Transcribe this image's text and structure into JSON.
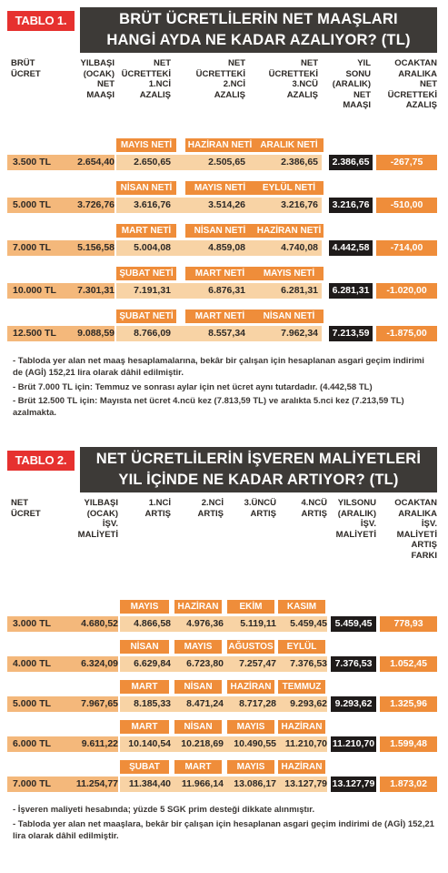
{
  "table1": {
    "badge": "TABLO 1.",
    "title_line1": "BRÜT ÜCRETLİLERİN NET MAAŞLARI",
    "title_line2": "HANGİ AYDA NE KADAR AZALIYOR? (TL)",
    "headers": {
      "brut": "BRÜT\nÜCRET",
      "ocak": "YILBAŞI\n(OCAK)\nNET\nMAAŞI",
      "a1": "NET\nÜCRETTEKİ\n1.NCİ\nAZALIŞ",
      "a2": "NET\nÜCRETTEKİ\n2.NCİ\nAZALIŞ",
      "a3": "NET\nÜCRETTEKİ\n3.NCÜ\nAZALIŞ",
      "yilsonu": "YIL\nSONU\n(ARALIK)\nNET\nMAAŞI",
      "fark": "OCAKTAN\nARALIKA\nNET\nÜCRETTEKİ\nAZALIŞ"
    },
    "rows": [
      {
        "labels": [
          "MAYIS NETİ",
          "HAZİRAN NETİ",
          "ARALIK NETİ"
        ],
        "brut": "3.500 TL",
        "ocak": "2.654,40",
        "a1": "2.650,65",
        "a2": "2.505,65",
        "a3": "2.386,65",
        "yilsonu": "2.386,65",
        "fark": "-267,75"
      },
      {
        "labels": [
          "NİSAN NETİ",
          "MAYIS NETİ",
          "EYLÜL NETİ"
        ],
        "brut": "5.000 TL",
        "ocak": "3.726,76",
        "a1": "3.616,76",
        "a2": "3.514,26",
        "a3": "3.216,76",
        "yilsonu": "3.216,76",
        "fark": "-510,00"
      },
      {
        "labels": [
          "MART NETİ",
          "NİSAN NETİ",
          "HAZİRAN NETİ"
        ],
        "brut": "7.000 TL",
        "ocak": "5.156,58",
        "a1": "5.004,08",
        "a2": "4.859,08",
        "a3": "4.740,08",
        "yilsonu": "4.442,58",
        "fark": "-714,00"
      },
      {
        "labels": [
          "ŞUBAT NETİ",
          "MART NETİ",
          "MAYIS NETİ"
        ],
        "brut": "10.000 TL",
        "ocak": "7.301,31",
        "a1": "7.191,31",
        "a2": "6.876,31",
        "a3": "6.281,31",
        "yilsonu": "6.281,31",
        "fark": "-1.020,00"
      },
      {
        "labels": [
          "ŞUBAT NETİ",
          "MART NETİ",
          "NİSAN NETİ"
        ],
        "brut": "12.500 TL",
        "ocak": "9.088,59",
        "a1": "8.766,09",
        "a2": "8.557,34",
        "a3": "7.962,34",
        "yilsonu": "7.213,59",
        "fark": "-1.875,00"
      }
    ],
    "notes": [
      "- Tabloda yer alan net maaş hesaplamalarına, bekâr bir çalışan için hesaplanan asgari geçim indirimi de (AGİ) 152,21 lira olarak dâhil edilmiştir.",
      "- Brüt 7.000 TL için: Temmuz ve sonrası aylar için net  ücret aynı tutardadır. (4.442,58 TL)",
      "- Brüt 12.500 TL için: Mayısta net ücret 4.ncü kez  (7.813,59 TL) ve aralıkta 5.nci kez (7.213,59 TL)  azalmakta."
    ]
  },
  "table2": {
    "badge": "TABLO 2.",
    "title_line1": "NET ÜCRETLİLERİN İŞVEREN MALİYETLERİ",
    "title_line2": "YIL İÇİNDE NE KADAR ARTIYOR? (TL)",
    "headers": {
      "net": "NET\nÜCRET",
      "ocak": "YILBAŞI\n(OCAK)\nİŞV.\nMALİYETİ",
      "a1": "1.NCİ\nARTIŞ",
      "a2": "2.NCİ\nARTIŞ",
      "a3": "3.ÜNCÜ\nARTIŞ",
      "a4": "4.NCÜ\nARTIŞ",
      "yilsonu": "YILSONU\n(ARALIK)\nİŞV.\nMALİYETİ",
      "fark": "OCAKTAN\nARALIKA\nİŞV.\nMALİYETİ\nARTIŞ\nFARKI"
    },
    "rows": [
      {
        "labels": [
          "MAYIS",
          "HAZİRAN",
          "EKİM",
          "KASIM"
        ],
        "net": "3.000 TL",
        "ocak": "4.680,52",
        "a1": "4.866,58",
        "a2": "4.976,36",
        "a3": "5.119,11",
        "a4": "5.459,45",
        "yilsonu": "5.459,45",
        "fark": "778,93"
      },
      {
        "labels": [
          "NİSAN",
          "MAYIS",
          "AĞUSTOS",
          "EYLÜL"
        ],
        "net": "4.000 TL",
        "ocak": "6.324,09",
        "a1": "6.629,84",
        "a2": "6.723,80",
        "a3": "7.257,47",
        "a4": "7.376,53",
        "yilsonu": "7.376,53",
        "fark": "1.052,45"
      },
      {
        "labels": [
          "MART",
          "NİSAN",
          "HAZİRAN",
          "TEMMUZ"
        ],
        "net": "5.000 TL",
        "ocak": "7.967,65",
        "a1": "8.185,33",
        "a2": "8.471,24",
        "a3": "8.717,28",
        "a4": "9.293,62",
        "yilsonu": "9.293,62",
        "fark": "1.325,96"
      },
      {
        "labels": [
          "MART",
          "NİSAN",
          "MAYIS",
          "HAZİRAN"
        ],
        "net": "6.000 TL",
        "ocak": "9.611,22",
        "a1": "10.140,54",
        "a2": "10.218,69",
        "a3": "10.490,55",
        "a4": "11.210,70",
        "yilsonu": "11.210,70",
        "fark": "1.599,48"
      },
      {
        "labels": [
          "ŞUBAT",
          "MART",
          "MAYIS",
          "HAZİRAN"
        ],
        "net": "7.000 TL",
        "ocak": "11.254,77",
        "a1": "11.384,40",
        "a2": "11.966,14",
        "a3": "13.086,17",
        "a4": "13.127,79",
        "yilsonu": "13.127,79",
        "fark": "1.873,02"
      }
    ],
    "notes": [
      "- İşveren maliyeti hesabında; yüzde 5 SGK prim desteği dikkate alınmıştır.",
      "- Tabloda yer alan net maaşlara, bekâr bir çalışan için hesaplanan asgari geçim indirimi de (AGİ) 152,21 lira olarak dâhil edilmiştir."
    ]
  },
  "colors": {
    "accent_red": "#e6312f",
    "title_bar": "#3d3a37",
    "month_label": "#ef8d3a",
    "row_dark": "#f4b87b",
    "row_light": "#f8d3a5",
    "black_cell": "#1f1b1a"
  }
}
